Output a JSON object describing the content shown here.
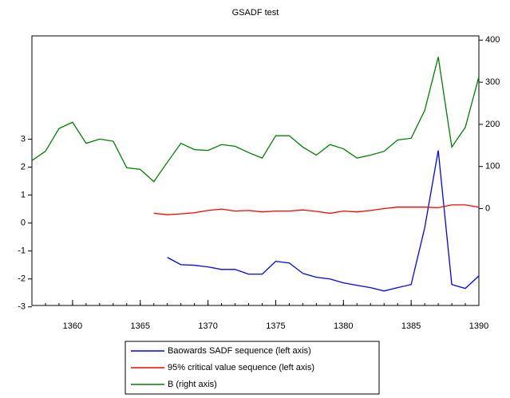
{
  "chart_data": {
    "type": "line",
    "title": "GSADF test",
    "x": [
      1357,
      1358,
      1359,
      1360,
      1361,
      1362,
      1363,
      1364,
      1365,
      1366,
      1367,
      1368,
      1369,
      1370,
      1371,
      1372,
      1373,
      1374,
      1375,
      1376,
      1377,
      1378,
      1379,
      1380,
      1381,
      1382,
      1383,
      1384,
      1385,
      1386,
      1387,
      1388,
      1389,
      1390
    ],
    "xlim": [
      1357,
      1390
    ],
    "xticks": [
      1360,
      1365,
      1370,
      1375,
      1380,
      1385,
      1390
    ],
    "ylim": [
      -2.95,
      6.7
    ],
    "yticks": [
      -3,
      -2,
      -1,
      0,
      1,
      2,
      3
    ],
    "y2lim": [
      -230,
      410
    ],
    "y2ticks": [
      0,
      100,
      200,
      300,
      400
    ],
    "series": [
      {
        "name": "Baowards SADF sequence (left axis)",
        "color": "#0000ff",
        "values": [
          null,
          null,
          null,
          null,
          null,
          null,
          null,
          null,
          null,
          null,
          -1.23,
          -1.49,
          -1.51,
          -1.57,
          -1.66,
          -1.66,
          -1.83,
          -1.83,
          -1.37,
          -1.43,
          -1.8,
          -1.94,
          -2.0,
          -2.14,
          -2.23,
          -2.31,
          -2.43,
          -2.31,
          -2.2,
          -0.17,
          2.6,
          -2.2,
          -2.34,
          -1.89
        ]
      },
      {
        "name": "95% critical value sequence (left axis)",
        "color": "#ff0000",
        "values": [
          null,
          null,
          null,
          null,
          null,
          null,
          null,
          null,
          null,
          0.35,
          0.3,
          0.33,
          0.37,
          0.45,
          0.5,
          0.43,
          0.45,
          0.4,
          0.43,
          0.43,
          0.47,
          0.42,
          0.35,
          0.43,
          0.4,
          0.45,
          0.52,
          0.57,
          0.57,
          0.57,
          0.55,
          0.65,
          0.65,
          0.57
        ]
      },
      {
        "name": "B (right axis)",
        "color": "#008000",
        "axis": "y2",
        "values": [
          114,
          136,
          190,
          205,
          155,
          165,
          160,
          97,
          93,
          64,
          110,
          155,
          140,
          138,
          152,
          148,
          133,
          120,
          173,
          173,
          146,
          127,
          152,
          142,
          120,
          127,
          136,
          163,
          167,
          233,
          360,
          146,
          193,
          313
        ]
      }
    ]
  }
}
